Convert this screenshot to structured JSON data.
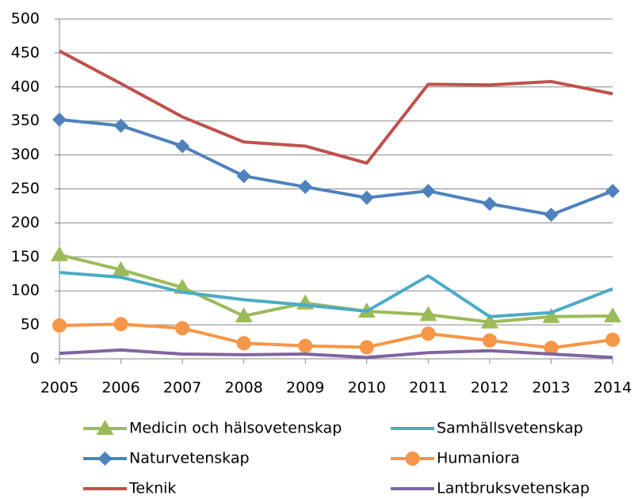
{
  "chart_data": {
    "type": "line",
    "x": [
      2005,
      2006,
      2007,
      2008,
      2009,
      2010,
      2011,
      2012,
      2013,
      2014
    ],
    "xlim": [
      2005,
      2014
    ],
    "ylim": [
      0,
      500
    ],
    "yticks": [
      0,
      50,
      100,
      150,
      200,
      250,
      300,
      350,
      400,
      450,
      500
    ],
    "grid": true,
    "legend": "bottom",
    "series": [
      {
        "name": "Medicin och hälsovetenskap",
        "color": "#9bbb59",
        "marker": "triangle",
        "values": [
          153,
          131,
          105,
          63,
          82,
          70,
          65,
          54,
          62,
          63
        ]
      },
      {
        "name": "Samhällsvetenskap",
        "color": "#4bacc6",
        "values": [
          127,
          120,
          98,
          87,
          79,
          70,
          122,
          62,
          68,
          103
        ]
      },
      {
        "name": "Naturvetenskap",
        "color": "#4f81bd",
        "marker": "diamond",
        "values": [
          352,
          343,
          313,
          269,
          253,
          237,
          247,
          228,
          212,
          247
        ]
      },
      {
        "name": "Humaniora",
        "color": "#f79646",
        "marker": "circle",
        "values": [
          49,
          51,
          45,
          23,
          19,
          17,
          37,
          27,
          16,
          28
        ]
      },
      {
        "name": "Teknik",
        "color": "#c0504d",
        "values": [
          453,
          405,
          356,
          319,
          313,
          288,
          404,
          403,
          408,
          390
        ]
      },
      {
        "name": "Lantbruksvetenskap",
        "color": "#8064a2",
        "values": [
          8,
          13,
          7,
          6,
          7,
          2,
          9,
          12,
          7,
          2
        ]
      }
    ]
  }
}
